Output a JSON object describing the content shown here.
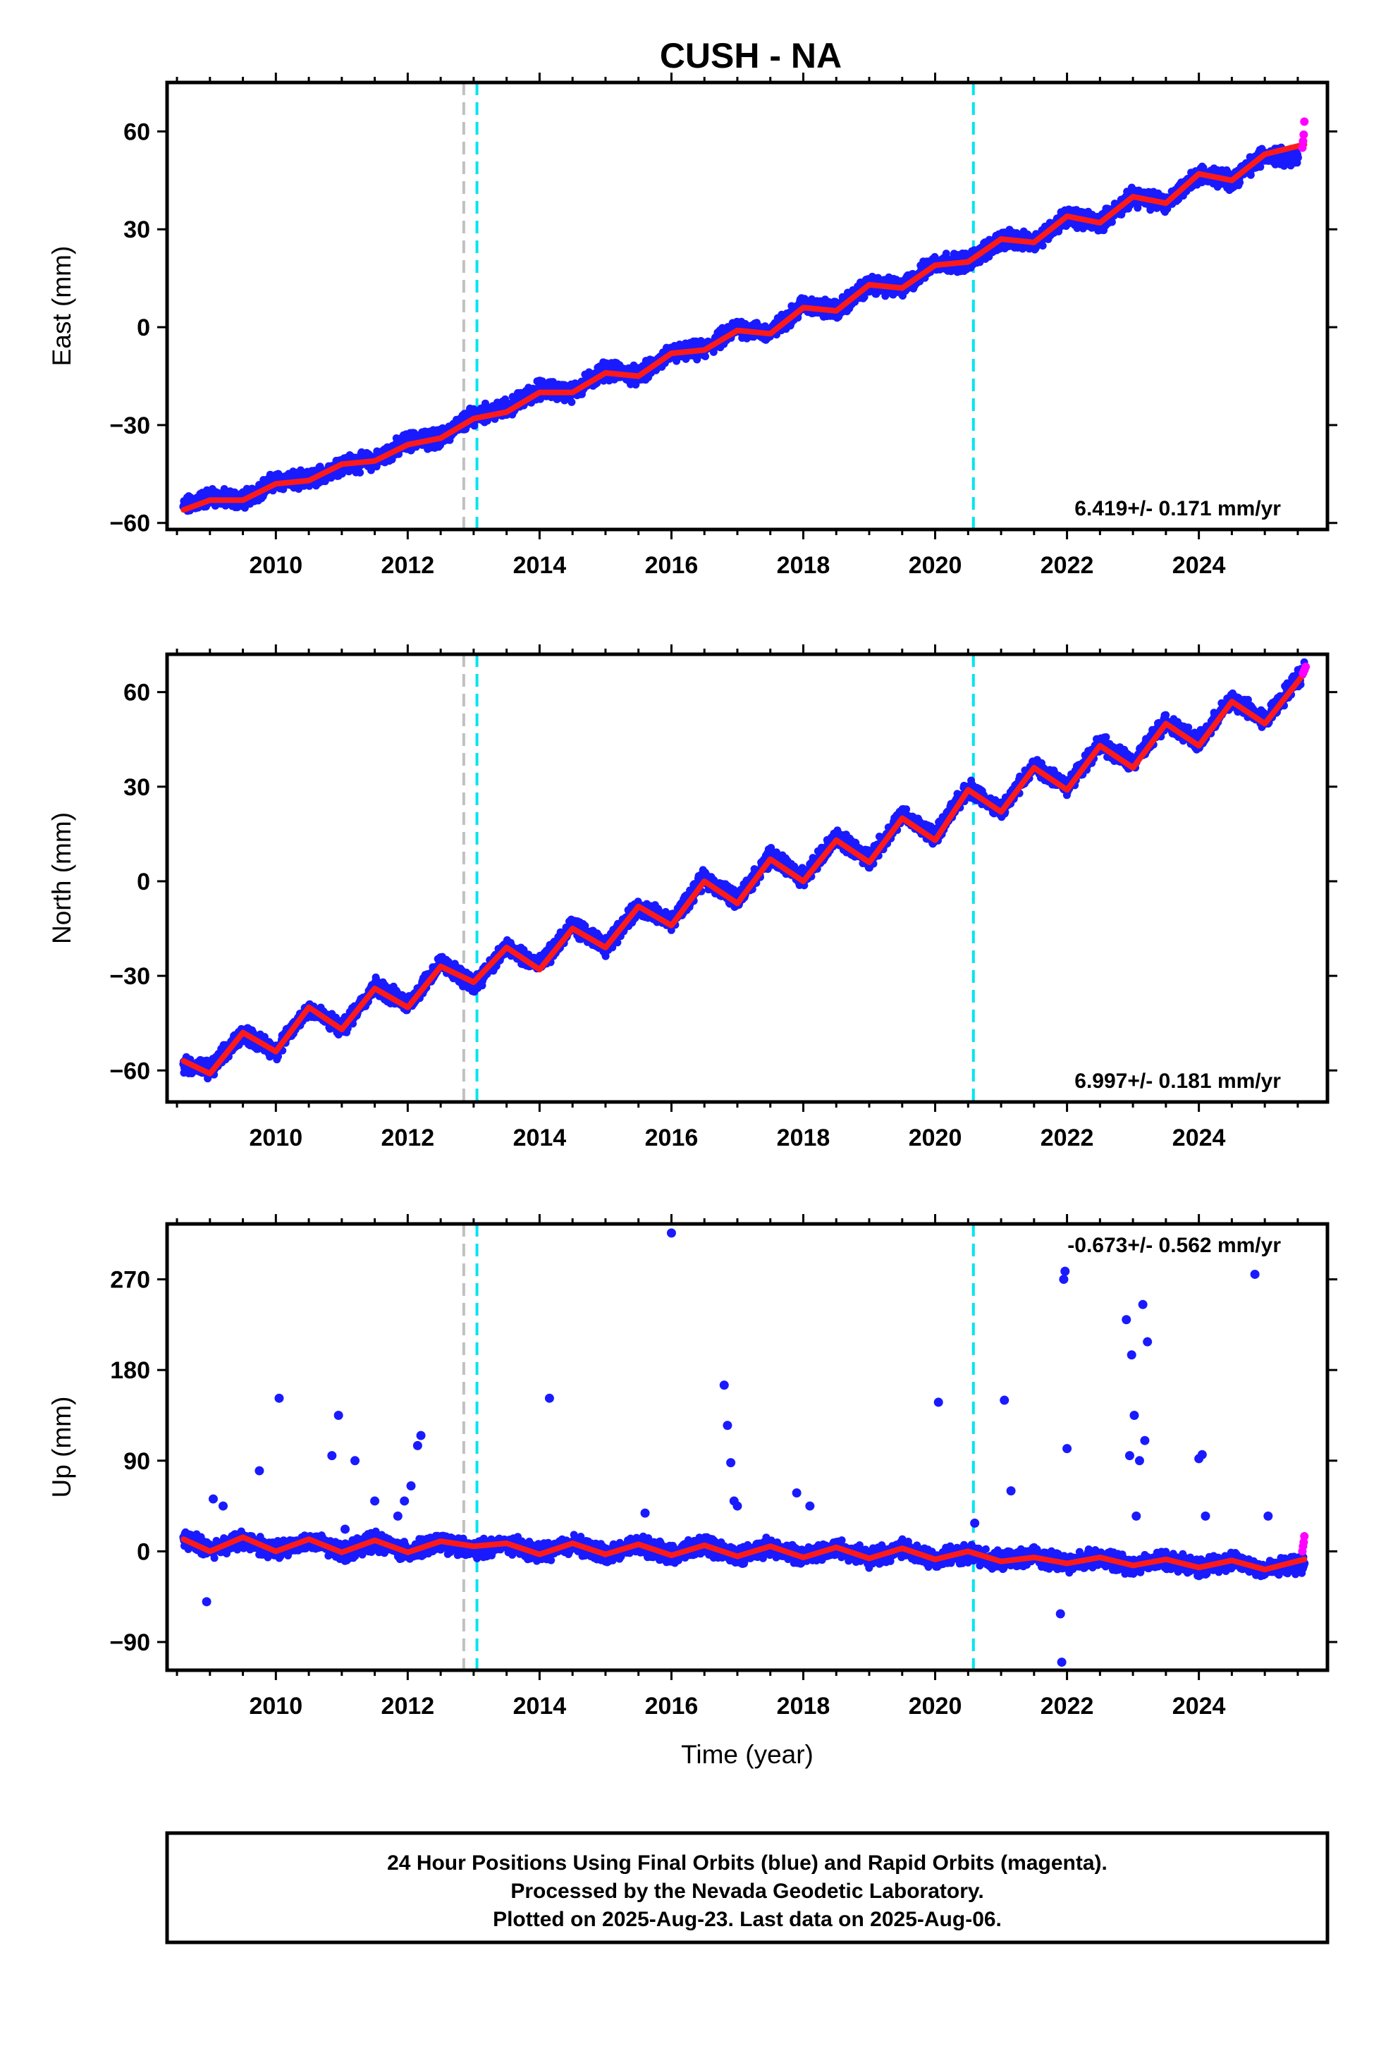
{
  "chart_data": [
    {
      "type": "scatter",
      "title": "CUSH - NA",
      "xlabel": "",
      "ylabel": "East (mm)",
      "xlim": [
        2008.35,
        2025.95
      ],
      "ylim": [
        -62,
        75
      ],
      "xticks": [
        2010,
        2012,
        2014,
        2016,
        2018,
        2020,
        2022,
        2024
      ],
      "yticks": [
        60,
        30,
        0,
        -30,
        -60
      ],
      "ytick_labels": [
        "60",
        "30",
        "0",
        "−30",
        "−60"
      ],
      "rate_label": "6.419+/- 0.171 mm/yr",
      "vlines": [
        {
          "x": 2012.85,
          "color": "#c0c0c0"
        },
        {
          "x": 2013.05,
          "color": "#00e5ee"
        },
        {
          "x": 2020.58,
          "color": "#00e5ee"
        }
      ],
      "series": [
        {
          "values_role": "final_orbits",
          "color": "#1a1aff",
          "x": [
            2008.6,
            2009.0,
            2009.5,
            2010.0,
            2010.5,
            2011.0,
            2011.5,
            2012.0,
            2012.5,
            2013.0,
            2013.5,
            2014.0,
            2014.5,
            2015.0,
            2015.5,
            2016.0,
            2016.5,
            2017.0,
            2017.5,
            2018.0,
            2018.5,
            2019.0,
            2019.5,
            2020.0,
            2020.5,
            2021.0,
            2021.5,
            2022.0,
            2022.5,
            2023.0,
            2023.5,
            2024.0,
            2024.5,
            2025.0,
            2025.5
          ],
          "y": [
            -55,
            -52,
            -53,
            -47,
            -47,
            -42,
            -41,
            -35,
            -34,
            -27,
            -25,
            -19,
            -20,
            -13,
            -15,
            -8,
            -7,
            0,
            -2,
            7,
            5,
            13,
            12,
            20,
            20,
            27,
            26,
            34,
            32,
            40,
            38,
            47,
            45,
            53,
            52
          ]
        },
        {
          "values_role": "rapid_orbits",
          "color": "#ff00ff",
          "x": [
            2025.57,
            2025.58,
            2025.59,
            2025.6
          ],
          "y": [
            55,
            57,
            59,
            63
          ]
        },
        {
          "values_role": "model_fit",
          "color": "#ff1a1a",
          "x": [
            2008.6,
            2009.0,
            2009.5,
            2010.0,
            2010.5,
            2011.0,
            2011.5,
            2012.0,
            2012.5,
            2013.0,
            2013.5,
            2014.0,
            2014.5,
            2015.0,
            2015.5,
            2016.0,
            2016.5,
            2017.0,
            2017.5,
            2018.0,
            2018.5,
            2019.0,
            2019.5,
            2020.0,
            2020.5,
            2021.0,
            2021.5,
            2022.0,
            2022.5,
            2023.0,
            2023.5,
            2024.0,
            2024.5,
            2025.0,
            2025.6
          ],
          "y": [
            -56,
            -53,
            -53,
            -48,
            -47,
            -42,
            -41,
            -36,
            -34,
            -28,
            -26,
            -20,
            -20,
            -14,
            -15,
            -8,
            -7,
            -1,
            -2,
            6,
            5,
            13,
            12,
            19,
            20,
            27,
            26,
            34,
            32,
            40,
            38,
            47,
            45,
            53,
            56
          ]
        }
      ]
    },
    {
      "type": "scatter",
      "title": "",
      "xlabel": "",
      "ylabel": "North (mm)",
      "xlim": [
        2008.35,
        2025.95
      ],
      "ylim": [
        -70,
        72
      ],
      "xticks": [
        2010,
        2012,
        2014,
        2016,
        2018,
        2020,
        2022,
        2024
      ],
      "yticks": [
        60,
        30,
        0,
        -30,
        -60
      ],
      "ytick_labels": [
        "60",
        "30",
        "0",
        "−30",
        "−60"
      ],
      "rate_label": "6.997+/- 0.181 mm/yr",
      "vlines": [
        {
          "x": 2012.85,
          "color": "#c0c0c0"
        },
        {
          "x": 2013.05,
          "color": "#00e5ee"
        },
        {
          "x": 2020.58,
          "color": "#00e5ee"
        }
      ],
      "series": [
        {
          "values_role": "final_orbits",
          "color": "#1a1aff",
          "x": [
            2008.6,
            2009.0,
            2009.5,
            2010.0,
            2010.5,
            2011.0,
            2011.5,
            2012.0,
            2012.5,
            2013.0,
            2013.5,
            2014.0,
            2014.5,
            2015.0,
            2015.5,
            2016.0,
            2016.5,
            2017.0,
            2017.5,
            2018.0,
            2018.5,
            2019.0,
            2019.5,
            2020.0,
            2020.5,
            2021.0,
            2021.5,
            2022.0,
            2022.5,
            2023.0,
            2023.5,
            2024.0,
            2024.5,
            2025.0,
            2025.6
          ],
          "y": [
            -58,
            -60,
            -48,
            -54,
            -40,
            -47,
            -33,
            -39,
            -26,
            -33,
            -21,
            -27,
            -14,
            -21,
            -8,
            -13,
            1,
            -6,
            8,
            1,
            14,
            7,
            21,
            14,
            30,
            22,
            37,
            30,
            44,
            37,
            51,
            44,
            58,
            51,
            67
          ]
        },
        {
          "values_role": "rapid_orbits",
          "color": "#ff00ff",
          "x": [
            2025.58,
            2025.6,
            2025.62
          ],
          "y": [
            66,
            67,
            68
          ]
        },
        {
          "values_role": "model_fit",
          "color": "#ff1a1a",
          "x": [
            2008.6,
            2009.0,
            2009.5,
            2010.0,
            2010.5,
            2011.0,
            2011.5,
            2012.0,
            2012.5,
            2013.0,
            2013.5,
            2014.0,
            2014.5,
            2015.0,
            2015.5,
            2016.0,
            2016.5,
            2017.0,
            2017.5,
            2018.0,
            2018.5,
            2019.0,
            2019.5,
            2020.0,
            2020.5,
            2021.0,
            2021.5,
            2022.0,
            2022.5,
            2023.0,
            2023.5,
            2024.0,
            2024.5,
            2025.0,
            2025.6
          ],
          "y": [
            -57,
            -61,
            -48,
            -54,
            -40,
            -47,
            -34,
            -40,
            -27,
            -32,
            -21,
            -28,
            -15,
            -21,
            -8,
            -14,
            0,
            -7,
            7,
            0,
            13,
            6,
            20,
            13,
            29,
            22,
            36,
            29,
            43,
            36,
            50,
            43,
            57,
            50,
            66
          ]
        }
      ]
    },
    {
      "type": "scatter",
      "title": "",
      "xlabel": "Time (year)",
      "ylabel": "Up (mm)",
      "xlim": [
        2008.35,
        2025.95
      ],
      "ylim": [
        -118,
        325
      ],
      "xticks": [
        2010,
        2012,
        2014,
        2016,
        2018,
        2020,
        2022,
        2024
      ],
      "yticks": [
        270,
        180,
        90,
        0,
        -90
      ],
      "ytick_labels": [
        "270",
        "180",
        "90",
        "0",
        "−90"
      ],
      "rate_label": "-0.673+/- 0.562 mm/yr",
      "vlines": [
        {
          "x": 2012.85,
          "color": "#c0c0c0"
        },
        {
          "x": 2013.05,
          "color": "#00e5ee"
        },
        {
          "x": 2020.58,
          "color": "#00e5ee"
        }
      ],
      "series": [
        {
          "values_role": "final_orbits",
          "color": "#1a1aff",
          "x": [
            2008.6,
            2009.0,
            2009.5,
            2010.0,
            2010.5,
            2011.0,
            2011.5,
            2012.0,
            2012.5,
            2013.0,
            2013.5,
            2014.0,
            2014.5,
            2015.0,
            2015.5,
            2016.0,
            2016.5,
            2017.0,
            2017.5,
            2018.0,
            2018.5,
            2019.0,
            2019.5,
            2020.0,
            2020.5,
            2021.0,
            2021.5,
            2022.0,
            2022.5,
            2023.0,
            2023.5,
            2024.0,
            2024.5,
            2025.0,
            2025.6
          ],
          "y": [
            14,
            2,
            12,
            0,
            11,
            -1,
            10,
            -1,
            9,
            1,
            8,
            -2,
            8,
            -3,
            7,
            -4,
            6,
            -5,
            5,
            -6,
            4,
            -7,
            3,
            -8,
            -2,
            -10,
            -5,
            -12,
            -6,
            -14,
            -8,
            -16,
            -9,
            -18,
            -12
          ]
        },
        {
          "values_role": "outliers",
          "color": "#1a1aff",
          "x": [
            2008.95,
            2009.05,
            2009.2,
            2009.75,
            2010.05,
            2010.85,
            2010.95,
            2011.05,
            2011.2,
            2011.5,
            2011.85,
            2011.95,
            2012.05,
            2012.15,
            2012.2,
            2014.15,
            2015.6,
            2016.0,
            2016.8,
            2016.85,
            2016.9,
            2016.95,
            2017.0,
            2017.9,
            2018.1,
            2020.05,
            2020.6,
            2021.05,
            2021.15,
            2021.9,
            2021.92,
            2021.95,
            2021.97,
            2022.0,
            2022.9,
            2022.95,
            2022.98,
            2023.02,
            2023.05,
            2023.1,
            2023.15,
            2023.18,
            2023.22,
            2024.0,
            2024.05,
            2024.1,
            2024.85,
            2025.05
          ],
          "y": [
            -50,
            52,
            45,
            80,
            152,
            95,
            135,
            22,
            90,
            50,
            35,
            50,
            65,
            105,
            115,
            152,
            38,
            316,
            165,
            125,
            88,
            50,
            45,
            58,
            45,
            148,
            28,
            150,
            60,
            -62,
            -110,
            270,
            278,
            102,
            230,
            95,
            195,
            135,
            35,
            90,
            245,
            110,
            208,
            92,
            96,
            35,
            275,
            35
          ]
        },
        {
          "values_role": "rapid_orbits",
          "color": "#ff00ff",
          "x": [
            2025.57,
            2025.58,
            2025.59,
            2025.6
          ],
          "y": [
            0,
            5,
            9,
            15
          ]
        },
        {
          "values_role": "model_fit",
          "color": "#ff1a1a",
          "x": [
            2008.6,
            2009.0,
            2009.5,
            2010.0,
            2010.5,
            2011.0,
            2011.5,
            2012.0,
            2012.5,
            2013.0,
            2013.5,
            2014.0,
            2014.5,
            2015.0,
            2015.5,
            2016.0,
            2016.5,
            2017.0,
            2017.5,
            2018.0,
            2018.5,
            2019.0,
            2019.5,
            2020.0,
            2020.5,
            2021.0,
            2021.5,
            2022.0,
            2022.5,
            2023.0,
            2023.5,
            2024.0,
            2024.5,
            2025.0,
            2025.6
          ],
          "y": [
            12,
            0,
            14,
            0,
            12,
            -1,
            11,
            -1,
            10,
            5,
            8,
            -3,
            8,
            -3,
            7,
            -4,
            6,
            -5,
            5,
            -6,
            4,
            -7,
            3,
            -8,
            0,
            -10,
            -6,
            -12,
            -6,
            -14,
            -8,
            -16,
            -9,
            -18,
            -8
          ]
        }
      ]
    }
  ],
  "footer": {
    "line1": "24 Hour Positions Using Final Orbits (blue) and Rapid Orbits (magenta).",
    "line2": "Processed by the Nevada Geodetic Laboratory.",
    "line3": "Plotted on 2025-Aug-23. Last data on 2025-Aug-06."
  }
}
